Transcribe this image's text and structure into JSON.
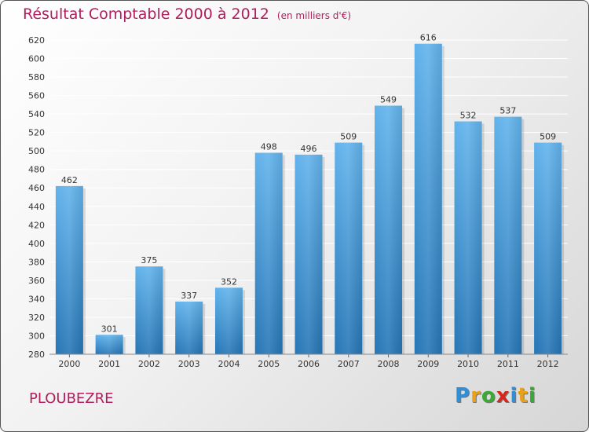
{
  "title": {
    "main": "Résultat Comptable 2000 à 2012",
    "sub": "(en milliers d'€)"
  },
  "commune": "PLOUBEZRE",
  "logo": {
    "letters": [
      "P",
      "r",
      "o",
      "x",
      "i",
      "t",
      "i"
    ],
    "colors": [
      "#2f8fd8",
      "#e8a21a",
      "#3aaa35",
      "#d9261c",
      "#2f8fd8",
      "#e8a21a",
      "#3aaa35"
    ]
  },
  "colors": {
    "bar_top": "#62b3ec",
    "bar_bottom": "#2676b6",
    "grid": "#ffffff",
    "text": "#333333",
    "accent": "#b01e5c"
  },
  "chart_data": {
    "type": "bar",
    "title": "Résultat Comptable 2000 à 2012",
    "subtitle": "(en milliers d'€)",
    "xlabel": "",
    "ylabel": "",
    "categories": [
      "2000",
      "2001",
      "2002",
      "2003",
      "2004",
      "2005",
      "2006",
      "2007",
      "2008",
      "2009",
      "2010",
      "2011",
      "2012"
    ],
    "values": [
      462,
      301,
      375,
      337,
      352,
      498,
      496,
      509,
      549,
      616,
      532,
      537,
      509
    ],
    "ylim": [
      280,
      620
    ],
    "yticks": [
      280,
      300,
      320,
      340,
      360,
      380,
      400,
      420,
      440,
      460,
      480,
      500,
      520,
      540,
      560,
      580,
      600,
      620
    ],
    "grid": true,
    "legend": "none"
  }
}
